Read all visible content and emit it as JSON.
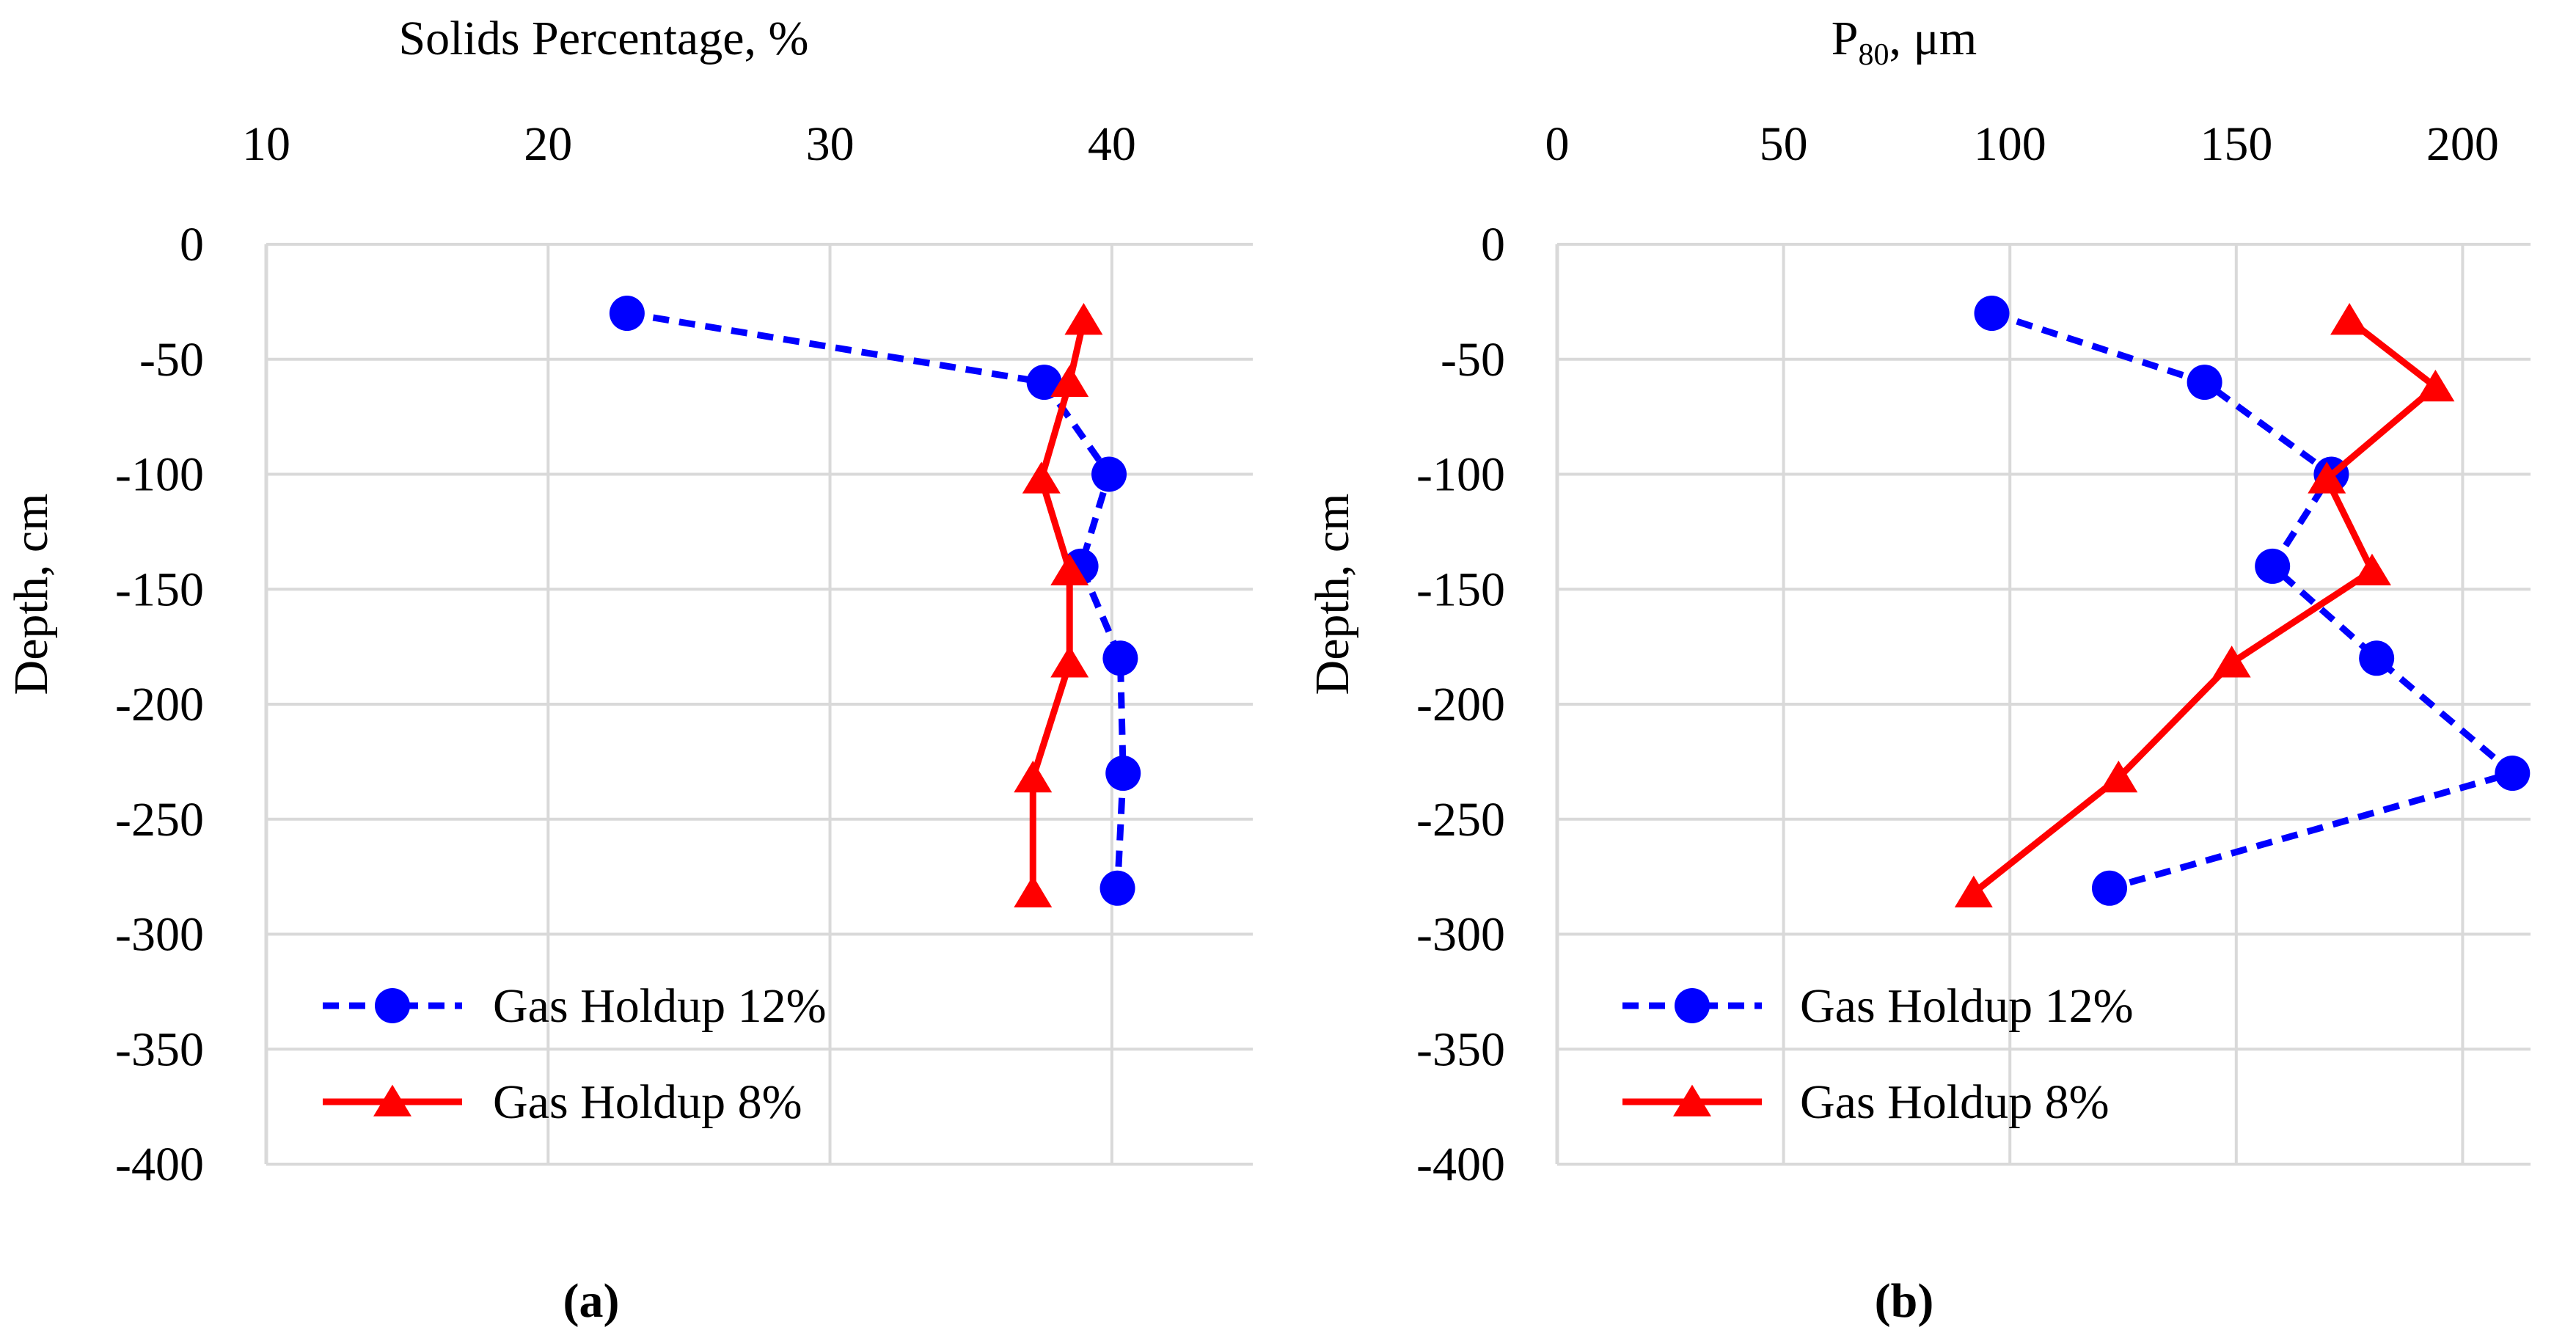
{
  "chart_data": [
    {
      "type": "line",
      "panel_label": "(a)",
      "x_axis_title": "Solids Percentage, %",
      "y_axis_title": "Depth, cm",
      "x_position": "top",
      "xlim": [
        10,
        45
      ],
      "ylim": [
        -400,
        0
      ],
      "xticks": [
        10,
        20,
        30,
        40
      ],
      "yticks": [
        0,
        -50,
        -100,
        -150,
        -200,
        -250,
        -300,
        -350,
        -400
      ],
      "grid": true,
      "legend_placement": "bottom-left",
      "series": [
        {
          "name": "Gas Holdup 12%",
          "color": "#0000ff",
          "line_style": "dashed",
          "marker": "circle",
          "points": [
            [
              22.8,
              -30
            ],
            [
              37.6,
              -60
            ],
            [
              39.9,
              -100
            ],
            [
              38.9,
              -140
            ],
            [
              40.3,
              -180
            ],
            [
              40.4,
              -230
            ],
            [
              40.2,
              -280
            ]
          ]
        },
        {
          "name": "Gas Holdup 8%",
          "color": "#ff0000",
          "line_style": "solid",
          "marker": "triangle",
          "points": [
            [
              39.0,
              -33
            ],
            [
              38.5,
              -60
            ],
            [
              37.5,
              -102
            ],
            [
              38.5,
              -142
            ],
            [
              38.5,
              -182
            ],
            [
              37.2,
              -232
            ],
            [
              37.2,
              -282
            ]
          ]
        }
      ]
    },
    {
      "type": "line",
      "panel_label": "(b)",
      "x_axis_title": {
        "main": "P",
        "sub": "80",
        "rest": ", μm"
      },
      "y_axis_title": "Depth, cm",
      "x_position": "top",
      "xlim": [
        0,
        215
      ],
      "ylim": [
        -400,
        0
      ],
      "xticks": [
        0,
        50,
        100,
        150,
        200
      ],
      "yticks": [
        0,
        -50,
        -100,
        -150,
        -200,
        -250,
        -300,
        -350,
        -400
      ],
      "grid": true,
      "legend_placement": "bottom-left",
      "series": [
        {
          "name": "Gas Holdup 12%",
          "color": "#0000ff",
          "line_style": "dashed",
          "marker": "circle",
          "points": [
            [
              96,
              -30
            ],
            [
              143,
              -60
            ],
            [
              171,
              -100
            ],
            [
              158,
              -140
            ],
            [
              181,
              -180
            ],
            [
              211,
              -230
            ],
            [
              122,
              -280
            ]
          ]
        },
        {
          "name": "Gas Holdup 8%",
          "color": "#ff0000",
          "line_style": "solid",
          "marker": "triangle",
          "points": [
            [
              175,
              -33
            ],
            [
              194,
              -62
            ],
            [
              170,
              -102
            ],
            [
              180,
              -142
            ],
            [
              149,
              -182
            ],
            [
              124,
              -232
            ],
            [
              92,
              -282
            ]
          ]
        }
      ]
    }
  ]
}
